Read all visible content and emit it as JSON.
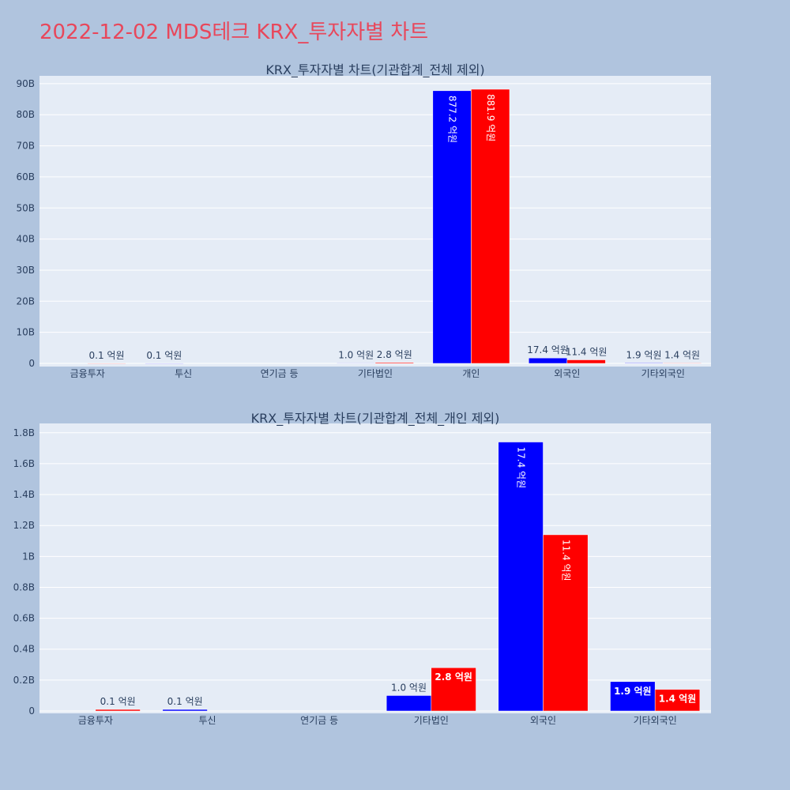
{
  "page": {
    "title": "2022-12-02 MDS테크 KRX_투자자별 차트"
  },
  "colors": {
    "background": "#b0c4de",
    "plot_bg": "#e5ecf6",
    "series_a": "#0000ff",
    "series_b": "#ff0000",
    "text": "#2a3f5f"
  },
  "chart_data": [
    {
      "type": "bar",
      "title": "KRX_투자자별 차트(기관합계_전체 제외)",
      "categories": [
        "금융투자",
        "투신",
        "연기금 등",
        "기타법인",
        "개인",
        "외국인",
        "기타외국인"
      ],
      "ylim": [
        0,
        92000000000
      ],
      "yticks": [
        0,
        10000000000,
        20000000000,
        30000000000,
        40000000000,
        50000000000,
        60000000000,
        70000000000,
        80000000000,
        90000000000
      ],
      "ytick_labels": [
        "0",
        "10B",
        "20B",
        "30B",
        "40B",
        "50B",
        "60B",
        "70B",
        "80B",
        "90B"
      ],
      "grid": true,
      "series": [
        {
          "color": "#0000ff",
          "values": [
            0,
            10000000,
            0,
            100000000,
            87720000000,
            1740000000,
            190000000
          ],
          "labels": [
            "",
            "0.1 억원",
            "",
            "1.0 억원",
            "877.2 억원",
            "17.4 억원",
            "1.9 억원"
          ]
        },
        {
          "color": "#ff0000",
          "values": [
            10000000,
            0,
            0,
            280000000,
            88190000000,
            1140000000,
            140000000
          ],
          "labels": [
            "0.1 억원",
            "",
            "",
            "2.8 억원",
            "881.9 억원",
            "11.4 억원",
            "1.4 억원"
          ]
        }
      ]
    },
    {
      "type": "bar",
      "title": "KRX_투자자별 차트(기관합계_전체_개인 제외)",
      "categories": [
        "금융투자",
        "투신",
        "연기금 등",
        "기타법인",
        "외국인",
        "기타외국인"
      ],
      "ylim": [
        0,
        1850000000
      ],
      "yticks": [
        0,
        200000000,
        400000000,
        600000000,
        800000000,
        1000000000,
        1200000000,
        1400000000,
        1600000000,
        1800000000
      ],
      "ytick_labels": [
        "0",
        "0.2B",
        "0.4B",
        "0.6B",
        "0.8B",
        "1B",
        "1.2B",
        "1.4B",
        "1.6B",
        "1.8B"
      ],
      "grid": true,
      "series": [
        {
          "color": "#0000ff",
          "values": [
            0,
            10000000,
            0,
            100000000,
            1740000000,
            190000000
          ],
          "labels": [
            "",
            "0.1 억원",
            "",
            "1.0 억원",
            "17.4 억원",
            "1.9 억원"
          ]
        },
        {
          "color": "#ff0000",
          "values": [
            10000000,
            0,
            0,
            280000000,
            1140000000,
            140000000
          ],
          "labels": [
            "0.1 억원",
            "",
            "",
            "2.8 억원",
            "11.4 억원",
            "1.4 억원"
          ]
        }
      ]
    }
  ]
}
